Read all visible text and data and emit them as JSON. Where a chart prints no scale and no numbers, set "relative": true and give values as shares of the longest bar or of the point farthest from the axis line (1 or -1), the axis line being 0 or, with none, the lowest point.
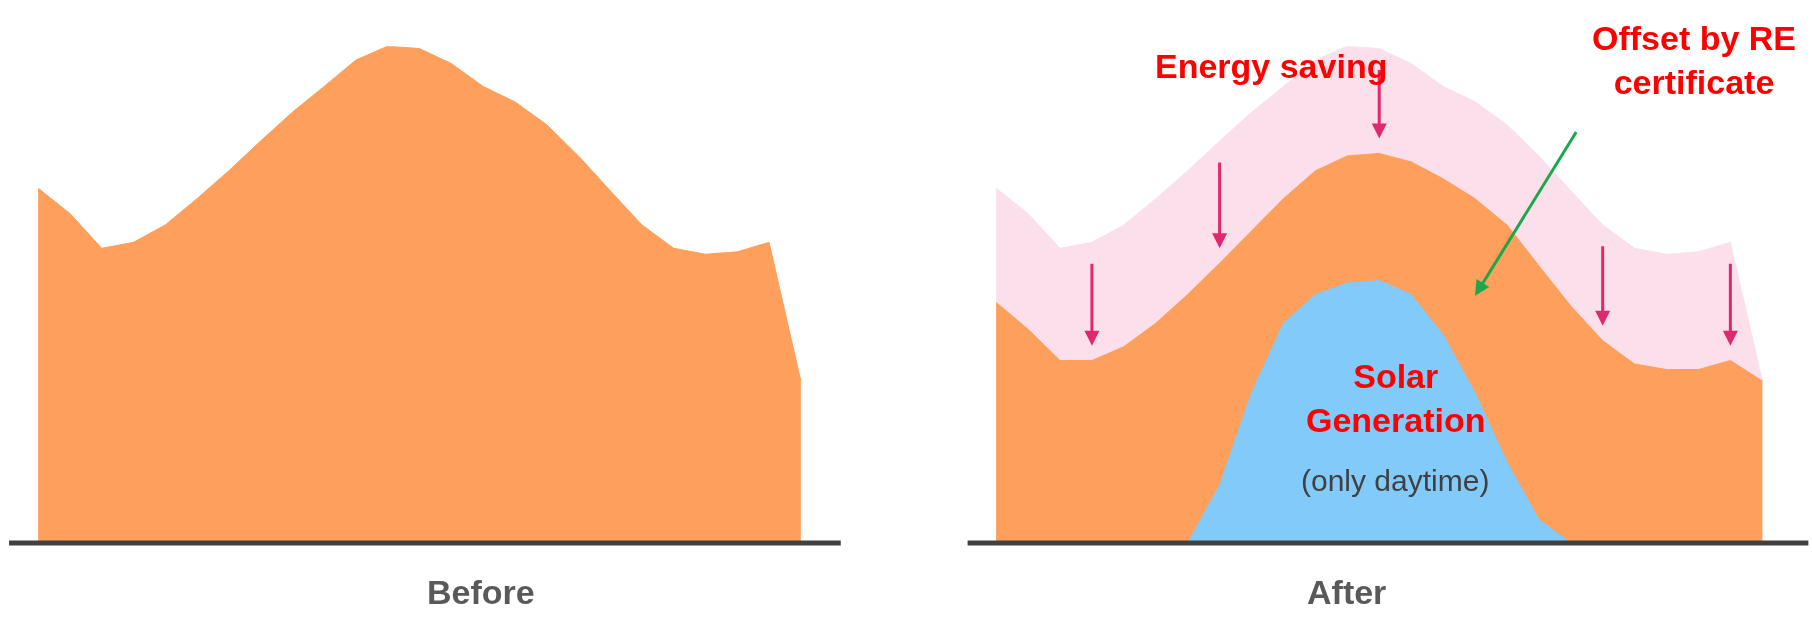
{
  "chart_data": [
    {
      "type": "area",
      "title": "Before",
      "relative": true,
      "categories": [
        null,
        null,
        null,
        null,
        null,
        null,
        null,
        null,
        null,
        null,
        null,
        null,
        null,
        null,
        null,
        null,
        null,
        null,
        null,
        null,
        null,
        null,
        null,
        null,
        null
      ],
      "series": [
        {
          "color": "#fe9f5b",
          "values": [
            0.714,
            0.663,
            0.593,
            0.605,
            0.64,
            0.693,
            0.749,
            0.809,
            0.867,
            0.919,
            0.972,
            1.0,
            0.995,
            0.965,
            0.919,
            0.888,
            0.842,
            0.779,
            0.709,
            0.64,
            0.593,
            0.581,
            0.586,
            0.605,
            0.326
          ]
        }
      ]
    },
    {
      "type": "area",
      "title": "After",
      "relative": true,
      "categories": [
        null,
        null,
        null,
        null,
        null,
        null,
        null,
        null,
        null,
        null,
        null,
        null,
        null,
        null,
        null,
        null,
        null,
        null,
        null,
        null,
        null,
        null,
        null,
        null,
        null
      ],
      "annotations": [
        "Energy saving",
        "Offset by RE certificate",
        "Solar Generation",
        "(only daytime)"
      ],
      "series": [
        {
          "color": "#fbe0ec",
          "values": [
            0.714,
            0.663,
            0.593,
            0.605,
            0.64,
            0.693,
            0.749,
            0.809,
            0.867,
            0.919,
            0.972,
            1.0,
            0.995,
            0.965,
            0.919,
            0.888,
            0.842,
            0.779,
            0.709,
            0.64,
            0.593,
            0.581,
            0.586,
            0.605,
            0.326
          ]
        },
        {
          "color": "#fe9f5b",
          "values": [
            0.484,
            0.43,
            0.367,
            0.367,
            0.395,
            0.442,
            0.5,
            0.563,
            0.628,
            0.693,
            0.749,
            0.779,
            0.784,
            0.767,
            0.733,
            0.693,
            0.64,
            0.558,
            0.477,
            0.407,
            0.36,
            0.349,
            0.349,
            0.367,
            0.326
          ]
        },
        {
          "color": "#82cafa",
          "values": [
            null,
            null,
            null,
            null,
            null,
            null,
            0.0,
            0.116,
            0.302,
            0.442,
            0.5,
            0.523,
            0.528,
            0.5,
            0.419,
            0.302,
            0.163,
            0.047,
            0.0,
            null,
            null,
            null,
            null,
            null,
            null
          ]
        }
      ]
    }
  ]
}
